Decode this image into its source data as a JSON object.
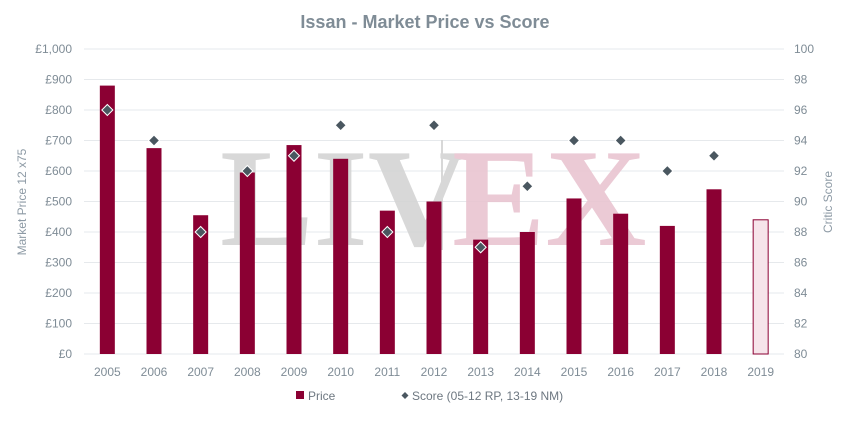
{
  "chart_data": {
    "type": "bar",
    "title": "Issan - Market Price vs Score",
    "categories": [
      "2005",
      "2006",
      "2007",
      "2008",
      "2009",
      "2010",
      "2011",
      "2012",
      "2013",
      "2014",
      "2015",
      "2016",
      "2017",
      "2018",
      "2019"
    ],
    "series": [
      {
        "name": "Price",
        "type": "bar",
        "axis": "left",
        "values": [
          880,
          675,
          455,
          595,
          685,
          640,
          470,
          500,
          375,
          400,
          510,
          460,
          420,
          540,
          440
        ],
        "color": "#8b0033",
        "highlight_last": true,
        "highlight_color": "#f6e4ea"
      },
      {
        "name": "Score (05-12 RP, 13-19 NM)",
        "type": "scatter",
        "marker": "diamond",
        "axis": "right",
        "values": [
          96,
          94,
          88,
          92,
          93,
          95,
          88,
          95,
          87,
          91,
          94,
          94,
          92,
          93,
          null
        ],
        "color": "#4a5760"
      }
    ],
    "ylabel": "Market Price 12 x75",
    "y2label": "Critic Score",
    "ylim": [
      0,
      1000
    ],
    "y2lim": [
      80,
      100
    ],
    "yticks": [
      "£0",
      "£100",
      "£200",
      "£300",
      "£400",
      "£500",
      "£600",
      "£700",
      "£800",
      "£900",
      "£1,000"
    ],
    "y2ticks": [
      "80",
      "82",
      "84",
      "86",
      "88",
      "90",
      "92",
      "94",
      "96",
      "98",
      "100"
    ],
    "grid": true,
    "legend": "bottom-center",
    "watermark": {
      "left": "LIV",
      "right": "EX"
    }
  },
  "colors": {
    "title": "#7f8c96",
    "axis_text": "#7f8c96",
    "grid": "#e6e9ec",
    "bar": "#8b0033",
    "marker": "#4a5760"
  }
}
